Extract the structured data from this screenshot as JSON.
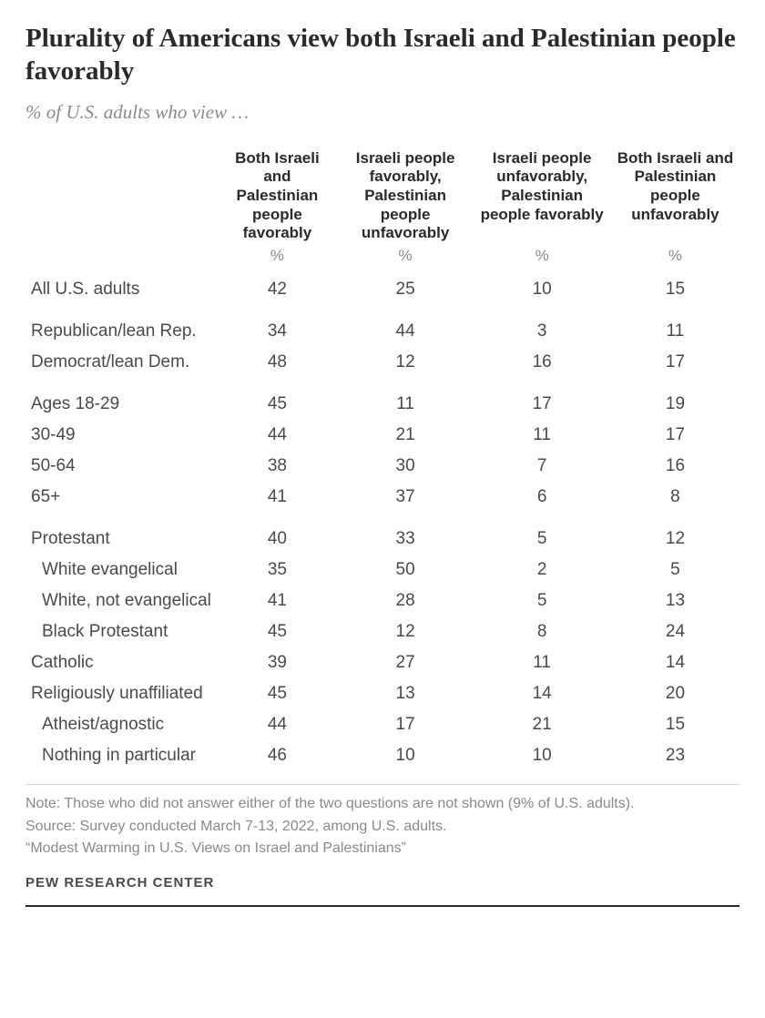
{
  "title": "Plurality of Americans view both Israeli and Palestinian people favorably",
  "subtitle": "% of U.S. adults who view …",
  "columns": [
    "Both Israeli and Palestinian people favorably",
    "Israeli people favorably, Palestinian people unfavorably",
    "Israeli people unfavorably, Palestinian people favorably",
    "Both Israeli and Palestinian people unfavorably"
  ],
  "pct_label": "%",
  "groups": [
    {
      "rows": [
        {
          "label": "All U.S. adults",
          "values": [
            42,
            25,
            10,
            15
          ],
          "indent": false
        }
      ]
    },
    {
      "rows": [
        {
          "label": "Republican/lean Rep.",
          "values": [
            34,
            44,
            3,
            11
          ],
          "indent": false
        },
        {
          "label": "Democrat/lean Dem.",
          "values": [
            48,
            12,
            16,
            17
          ],
          "indent": false
        }
      ]
    },
    {
      "rows": [
        {
          "label": "Ages 18-29",
          "values": [
            45,
            11,
            17,
            19
          ],
          "indent": false
        },
        {
          "label": "30-49",
          "values": [
            44,
            21,
            11,
            17
          ],
          "indent": false
        },
        {
          "label": "50-64",
          "values": [
            38,
            30,
            7,
            16
          ],
          "indent": false
        },
        {
          "label": "65+",
          "values": [
            41,
            37,
            6,
            8
          ],
          "indent": false
        }
      ]
    },
    {
      "rows": [
        {
          "label": "Protestant",
          "values": [
            40,
            33,
            5,
            12
          ],
          "indent": false
        },
        {
          "label": "White evangelical",
          "values": [
            35,
            50,
            2,
            5
          ],
          "indent": true
        },
        {
          "label": "White, not evangelical",
          "values": [
            41,
            28,
            5,
            13
          ],
          "indent": true
        },
        {
          "label": "Black Protestant",
          "values": [
            45,
            12,
            8,
            24
          ],
          "indent": true
        },
        {
          "label": "Catholic",
          "values": [
            39,
            27,
            11,
            14
          ],
          "indent": false
        },
        {
          "label": "Religiously unaffiliated",
          "values": [
            45,
            13,
            14,
            20
          ],
          "indent": false
        },
        {
          "label": "Atheist/agnostic",
          "values": [
            44,
            17,
            21,
            15
          ],
          "indent": true
        },
        {
          "label": "Nothing in particular",
          "values": [
            46,
            10,
            10,
            23
          ],
          "indent": true
        }
      ]
    }
  ],
  "notes": {
    "note": "Note: Those who did not answer either of the two questions are not shown (9% of U.S. adults).",
    "source": "Source: Survey conducted March 7-13, 2022, among U.S. adults.",
    "report": "“Modest Warming in U.S. Views on Israel and Palestinians”"
  },
  "attribution": "PEW RESEARCH CENTER",
  "style": {
    "title_fontsize": 29,
    "subtitle_fontsize": 21,
    "header_fontsize": 17,
    "cell_fontsize": 19,
    "notes_fontsize": 16,
    "attribution_fontsize": 15,
    "title_color": "#2a2a2a",
    "subtitle_color": "#8a8a8a",
    "text_color": "#4a4a4a",
    "notes_color": "#8a8a8a",
    "divider_color": "#d6d6d6",
    "bottom_rule_color": "#2a2a2a",
    "background": "#ffffff"
  }
}
